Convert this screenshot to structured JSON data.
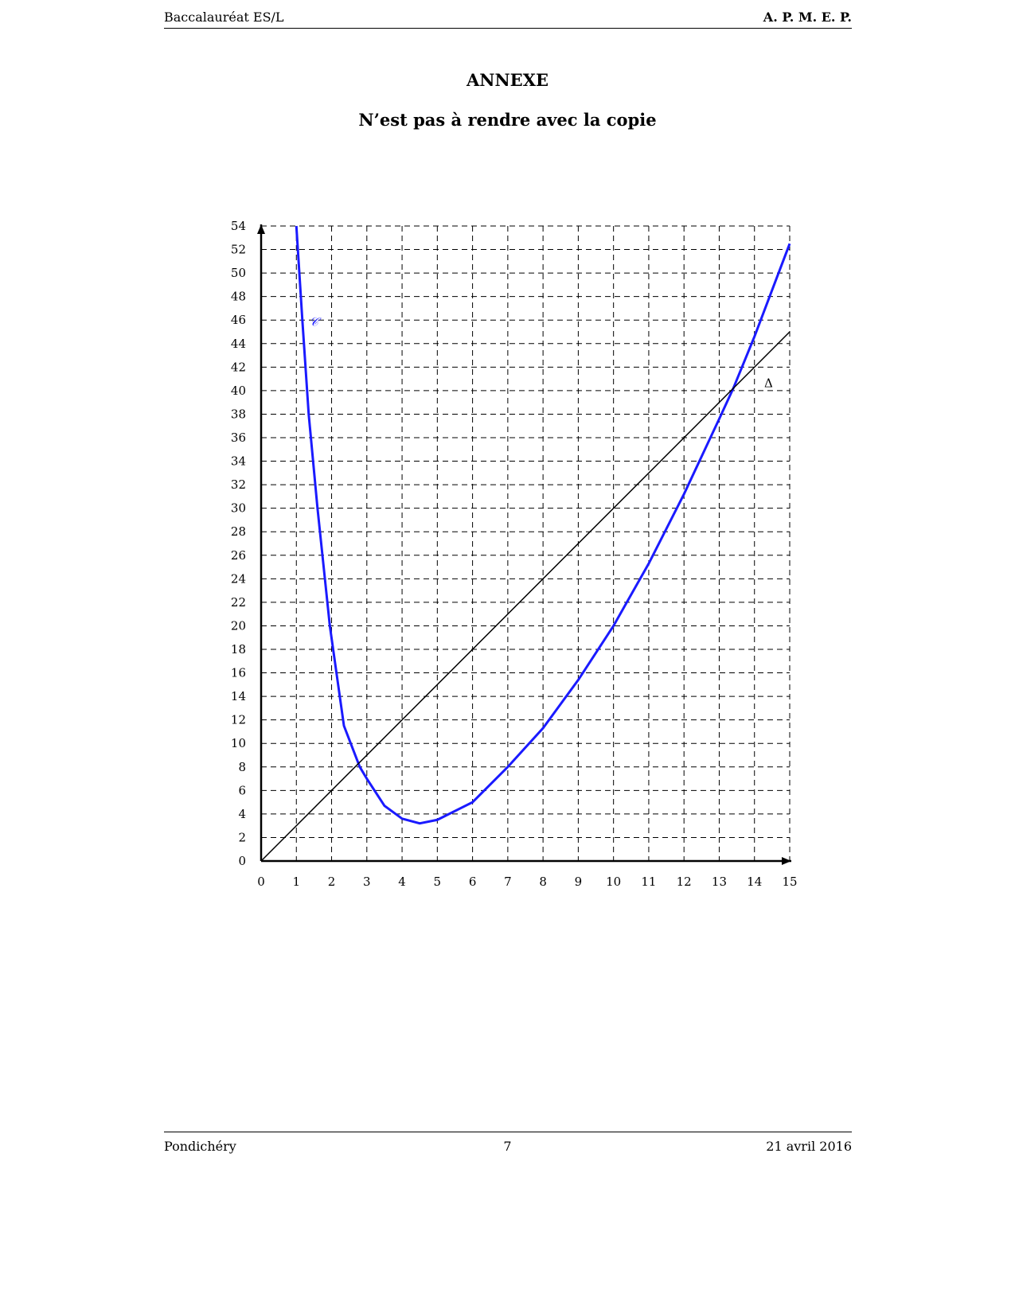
{
  "header": {
    "left": "Baccalauréat ES/L",
    "right": "A. P. M. E. P."
  },
  "title": "ANNEXE",
  "subtitle": "N’est pas à rendre avec la copie",
  "chart_data": {
    "type": "line",
    "xlim": [
      0,
      15
    ],
    "ylim": [
      0,
      54
    ],
    "xticks": [
      0,
      1,
      2,
      3,
      4,
      5,
      6,
      7,
      8,
      9,
      10,
      11,
      12,
      13,
      14,
      15
    ],
    "yticks": [
      0,
      2,
      4,
      6,
      8,
      10,
      12,
      14,
      16,
      18,
      20,
      22,
      24,
      26,
      28,
      30,
      32,
      34,
      36,
      38,
      40,
      42,
      44,
      46,
      48,
      50,
      52,
      54
    ],
    "grid": true,
    "series": [
      {
        "name": "𝒞",
        "color": "#1a1aff",
        "x": [
          1.0,
          1.17,
          1.35,
          1.6,
          1.95,
          2.35,
          2.8,
          3.0,
          3.5,
          4.0,
          4.5,
          5.0,
          6.0,
          7.0,
          8.0,
          9.0,
          10.0,
          11.0,
          12.0,
          13.0,
          13.4,
          14.0,
          15.0
        ],
        "values": [
          54,
          46,
          38,
          30,
          20,
          11.5,
          8,
          7,
          4.7,
          3.6,
          3.2,
          3.5,
          5,
          8,
          11.3,
          15.4,
          20,
          25.3,
          31.2,
          37.6,
          40.2,
          44.6,
          52.5
        ]
      },
      {
        "name": "Δ",
        "color": "#000000",
        "x": [
          0,
          15
        ],
        "values": [
          0,
          45
        ]
      }
    ]
  },
  "footer": {
    "left": "Pondichéry",
    "center": "7",
    "right": "21 avril 2016"
  }
}
